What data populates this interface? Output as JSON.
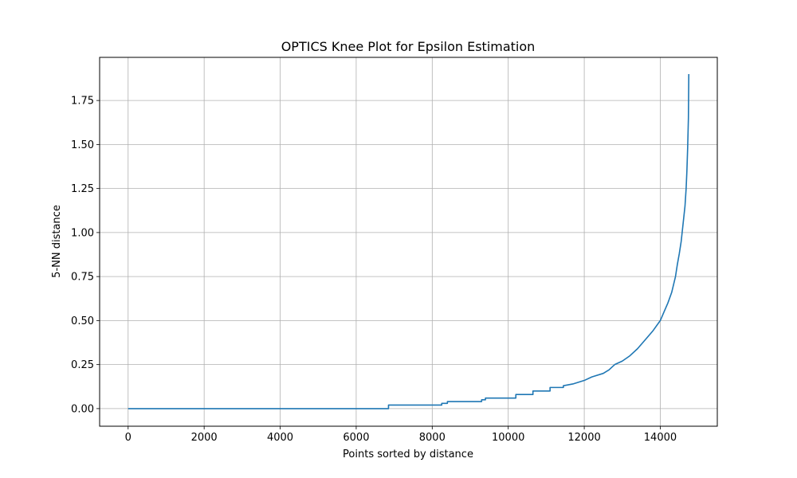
{
  "chart_data": {
    "type": "line",
    "title": "OPTICS Knee Plot for Epsilon Estimation",
    "xlabel": "Points sorted by distance",
    "ylabel": "5-NN distance",
    "xlim": [
      -750,
      15500
    ],
    "ylim": [
      -0.1,
      1.995
    ],
    "xticks": [
      0,
      2000,
      4000,
      6000,
      8000,
      10000,
      12000,
      14000
    ],
    "xtick_labels": [
      "0",
      "2000",
      "4000",
      "6000",
      "8000",
      "10000",
      "12000",
      "14000"
    ],
    "yticks": [
      0.0,
      0.25,
      0.5,
      0.75,
      1.0,
      1.25,
      1.5,
      1.75
    ],
    "ytick_labels": [
      "0.00",
      "0.25",
      "0.50",
      "0.75",
      "1.00",
      "1.25",
      "1.50",
      "1.75"
    ],
    "grid": true,
    "colors": {
      "line": "#1f77b4",
      "grid": "#b0b0b0",
      "axes": "#000000"
    },
    "series": [
      {
        "x": [
          0,
          6850,
          6850,
          8250,
          8250,
          8400,
          8400,
          9300,
          9300,
          9400,
          9400,
          10200,
          10200,
          10650,
          10650,
          11100,
          11100,
          11450,
          11450,
          11700,
          11850,
          12000,
          12200,
          12500,
          12650,
          12800,
          13000,
          13200,
          13400,
          13600,
          13800,
          14000,
          14100,
          14200,
          14300,
          14400,
          14450,
          14500,
          14550,
          14600,
          14650,
          14680,
          14700,
          14720,
          14740,
          14750
        ],
        "y": [
          0.0,
          0.0,
          0.02,
          0.02,
          0.03,
          0.03,
          0.04,
          0.04,
          0.05,
          0.05,
          0.06,
          0.06,
          0.08,
          0.08,
          0.1,
          0.1,
          0.12,
          0.12,
          0.13,
          0.14,
          0.15,
          0.16,
          0.18,
          0.2,
          0.22,
          0.25,
          0.27,
          0.3,
          0.34,
          0.39,
          0.44,
          0.5,
          0.55,
          0.6,
          0.66,
          0.75,
          0.82,
          0.88,
          0.95,
          1.05,
          1.15,
          1.25,
          1.35,
          1.48,
          1.65,
          1.9
        ]
      }
    ]
  }
}
